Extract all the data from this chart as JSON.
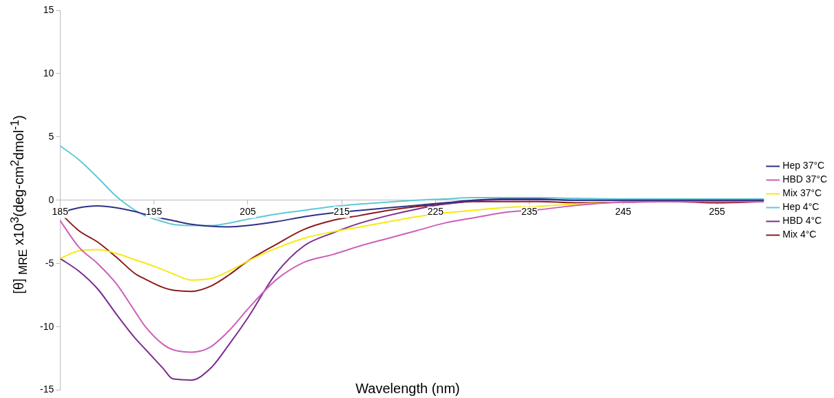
{
  "chart_data": {
    "type": "line",
    "xlabel": "Wavelength (nm)",
    "ylabel": "[θ] $_{MRE}$ x10$^{3}$(deg-cm$^{2}$dmol$^{-1}$)",
    "x": [
      185,
      187,
      189,
      191,
      193,
      194,
      196,
      197,
      199,
      201,
      203,
      205,
      208,
      211,
      214,
      217,
      220,
      223,
      226,
      229,
      232,
      234,
      236,
      240,
      245,
      250,
      255,
      260
    ],
    "xlim": [
      185,
      260
    ],
    "xticks": [
      185,
      195,
      205,
      215,
      225,
      235,
      245,
      255
    ],
    "ylim": [
      -15,
      15
    ],
    "yticks": [
      -15,
      -10,
      -5,
      0,
      5,
      10,
      15
    ],
    "grid": false,
    "legend": "right",
    "marker": "none",
    "line_style": "solid",
    "series": [
      {
        "name": "Hep 37°C",
        "color": "#2e3083",
        "values": [
          -1.0,
          -0.6,
          -0.45,
          -0.6,
          -0.9,
          -1.1,
          -1.45,
          -1.6,
          -1.9,
          -2.05,
          -2.1,
          -2.0,
          -1.7,
          -1.3,
          -1.0,
          -0.8,
          -0.6,
          -0.4,
          -0.2,
          0,
          0.1,
          0.1,
          0.1,
          0,
          0,
          0,
          0,
          0
        ]
      },
      {
        "name": "HBD 37°C",
        "color": "#cc5fb8",
        "values": [
          -1.6,
          -3.7,
          -5.0,
          -6.6,
          -8.8,
          -9.9,
          -11.4,
          -11.8,
          -12.0,
          -11.6,
          -10.3,
          -8.6,
          -6.3,
          -4.9,
          -4.3,
          -3.6,
          -3.0,
          -2.4,
          -1.8,
          -1.4,
          -1.0,
          -0.85,
          -0.75,
          -0.4,
          -0.15,
          -0.1,
          -0.1,
          -0.1
        ]
      },
      {
        "name": "Mix 37°C",
        "color": "#f5ea14",
        "values": [
          -4.6,
          -4.0,
          -3.9,
          -4.2,
          -4.7,
          -4.95,
          -5.5,
          -5.8,
          -6.3,
          -6.2,
          -5.6,
          -4.8,
          -3.8,
          -3.0,
          -2.5,
          -2.1,
          -1.7,
          -1.3,
          -1.0,
          -0.8,
          -0.6,
          -0.52,
          -0.48,
          -0.3,
          -0.15,
          null,
          null,
          null
        ]
      },
      {
        "name": "Hep 4°C",
        "color": "#5ec8d8",
        "values": [
          4.3,
          3.2,
          1.8,
          0.3,
          -0.8,
          -1.2,
          -1.7,
          -1.9,
          -2.0,
          -2.0,
          -1.8,
          -1.5,
          -1.1,
          -0.8,
          -0.5,
          -0.3,
          -0.15,
          0,
          0.1,
          0.2,
          0.2,
          0.2,
          0.2,
          0.15,
          0.1,
          0.1,
          0.1,
          0.1
        ]
      },
      {
        "name": "HBD 4°C",
        "color": "#7b2a8e",
        "values": [
          -4.6,
          -5.6,
          -7.0,
          -9.0,
          -10.9,
          -11.7,
          -13.3,
          -14.1,
          -14.2,
          -13.3,
          -11.4,
          -9.3,
          -5.8,
          -3.6,
          -2.6,
          -1.8,
          -1.2,
          -0.7,
          -0.3,
          -0.05,
          0.05,
          0.05,
          0.05,
          0,
          0,
          0,
          0,
          0
        ]
      },
      {
        "name": "Mix 4°C",
        "color": "#8b1a1a",
        "values": [
          -1.0,
          -2.4,
          -3.3,
          -4.5,
          -5.8,
          -6.2,
          -6.9,
          -7.1,
          -7.2,
          -6.8,
          -5.9,
          -4.8,
          -3.5,
          -2.3,
          -1.6,
          -1.2,
          -0.8,
          -0.5,
          -0.3,
          -0.1,
          -0.1,
          -0.1,
          -0.1,
          -0.2,
          -0.15,
          -0.1,
          -0.2,
          -0.1
        ]
      }
    ]
  }
}
